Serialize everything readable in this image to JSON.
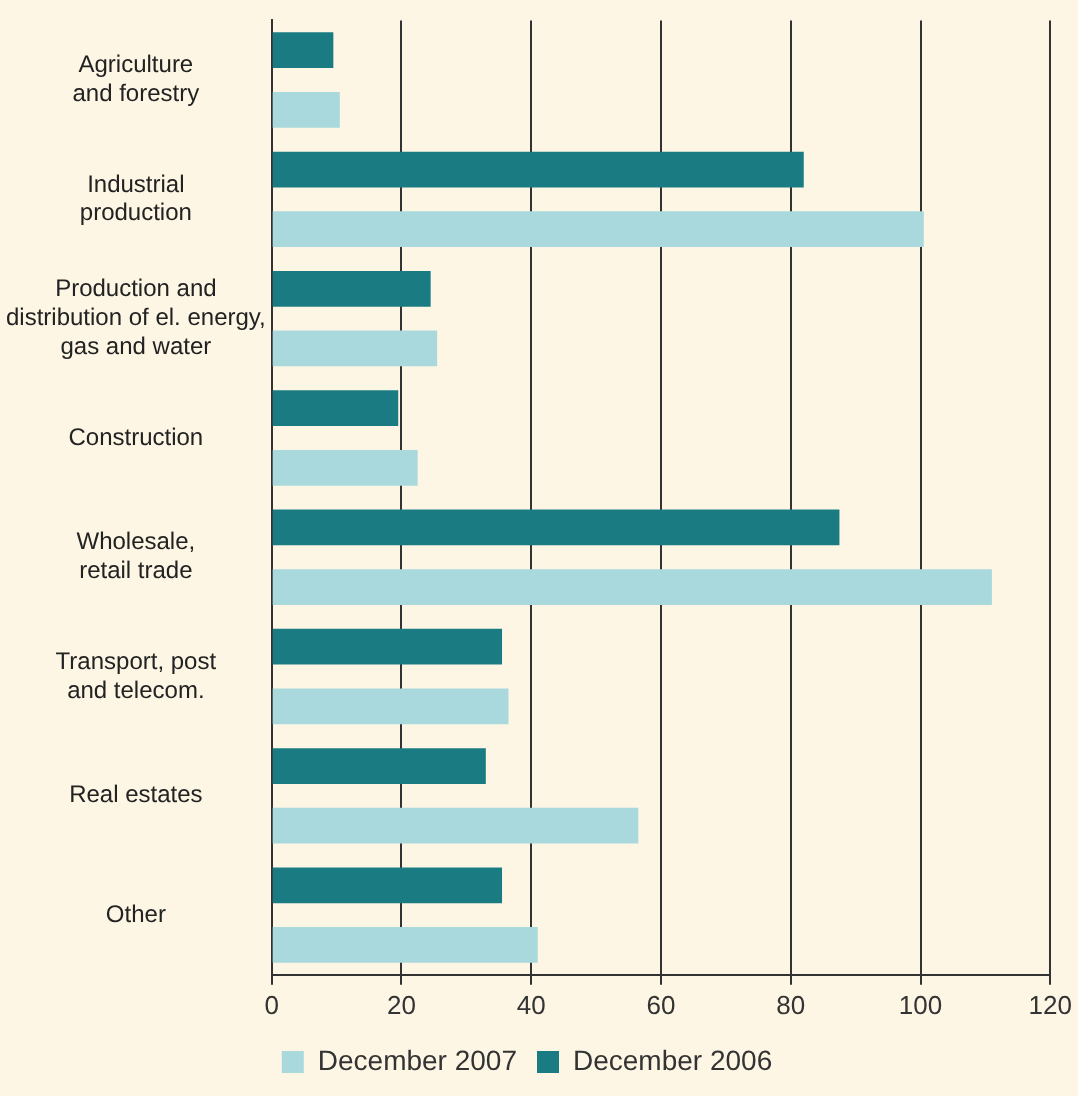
{
  "chart_data": {
    "type": "bar",
    "orientation": "horizontal",
    "categories": [
      "Agriculture\nand forestry",
      "Industrial\nproduction",
      "Production and\ndistribution of el. energy,\ngas and water",
      "Construction",
      "Wholesale,\nretail trade",
      "Transport, post\nand telecom.",
      "Real estates",
      "Other"
    ],
    "series": [
      {
        "name": "December 2006",
        "color": "#1a7c82",
        "values": [
          9.5,
          82,
          24.5,
          19.5,
          87.5,
          35.5,
          33,
          35.5
        ]
      },
      {
        "name": "December 2007",
        "color": "#a9d9dd",
        "values": [
          10.5,
          100.5,
          25.5,
          22.5,
          111,
          36.5,
          56.5,
          41
        ]
      }
    ],
    "xlim": [
      0,
      120
    ],
    "xticks": [
      0,
      20,
      40,
      60,
      80,
      100,
      120
    ],
    "grid": "x",
    "legend": "bottom"
  }
}
